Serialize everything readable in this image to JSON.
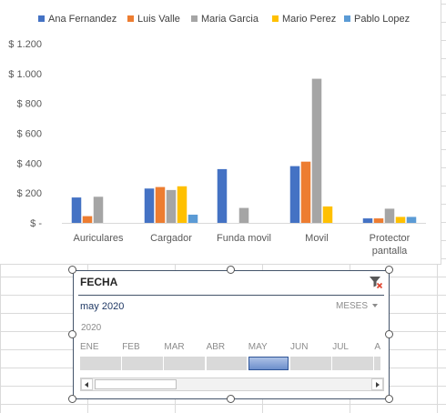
{
  "chart_data": {
    "type": "bar",
    "categories": [
      "Auriculares",
      "Cargador",
      "Funda movil",
      "Movil",
      "Protector pantalla"
    ],
    "series": [
      {
        "name": "Ana Fernandez",
        "color": "#4472c4",
        "values": [
          170,
          230,
          360,
          380,
          30
        ]
      },
      {
        "name": "Luis Valle",
        "color": "#ed7d31",
        "values": [
          45,
          240,
          0,
          410,
          30
        ]
      },
      {
        "name": "Maria Garcia",
        "color": "#a5a5a5",
        "values": [
          175,
          220,
          100,
          965,
          95
        ]
      },
      {
        "name": "Mario Perez",
        "color": "#ffc000",
        "values": [
          0,
          245,
          0,
          110,
          40
        ]
      },
      {
        "name": "Pablo Lopez",
        "color": "#5b9bd5",
        "values": [
          0,
          55,
          0,
          0,
          40
        ]
      }
    ],
    "ylim": [
      0,
      1200
    ],
    "yticks": [
      0,
      200,
      400,
      600,
      800,
      1000,
      1200
    ],
    "ytick_labels": [
      "$ -",
      "$ 200",
      "$ 400",
      "$ 600",
      "$ 800",
      "$ 1.000",
      "$ 1.200"
    ],
    "title": "",
    "xlabel": "",
    "ylabel": "",
    "grid": false,
    "legend_position": "top"
  },
  "slicer": {
    "title": "FECHA",
    "selection": "may 2020",
    "level": "MESES",
    "year": "2020",
    "months": [
      "ENE",
      "FEB",
      "MAR",
      "ABR",
      "MAY",
      "JUN",
      "JUL",
      "AGO"
    ],
    "selected_month": "MAY"
  }
}
